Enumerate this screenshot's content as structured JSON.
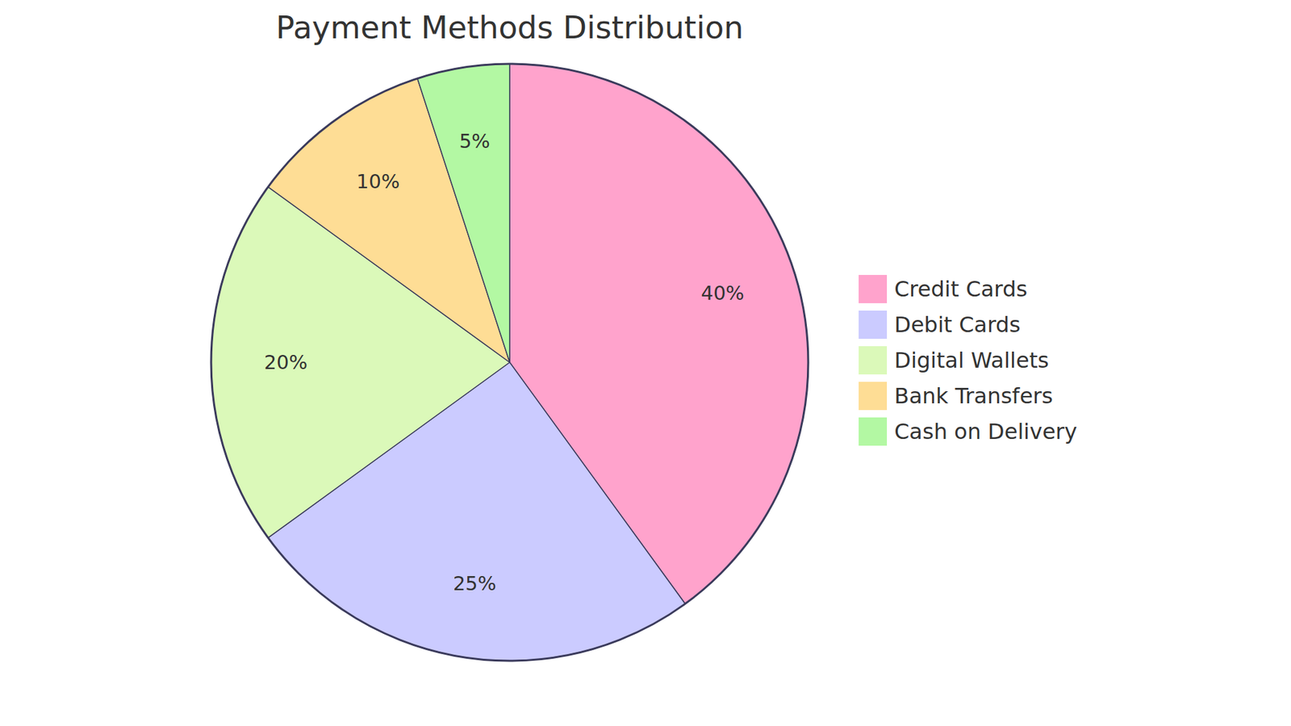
{
  "chart_data": {
    "type": "pie",
    "title": "Payment Methods Distribution",
    "categories": [
      "Credit Cards",
      "Debit Cards",
      "Digital Wallets",
      "Bank Transfers",
      "Cash on Delivery"
    ],
    "values": [
      40,
      25,
      20,
      10,
      5
    ],
    "value_labels": [
      "40%",
      "25%",
      "20%",
      "10%",
      "5%"
    ],
    "colors": [
      "#ffa3cc",
      "#cbcbff",
      "#dbf9b9",
      "#fedd95",
      "#b3f8a3"
    ],
    "data_labels": true,
    "legend": "right"
  }
}
